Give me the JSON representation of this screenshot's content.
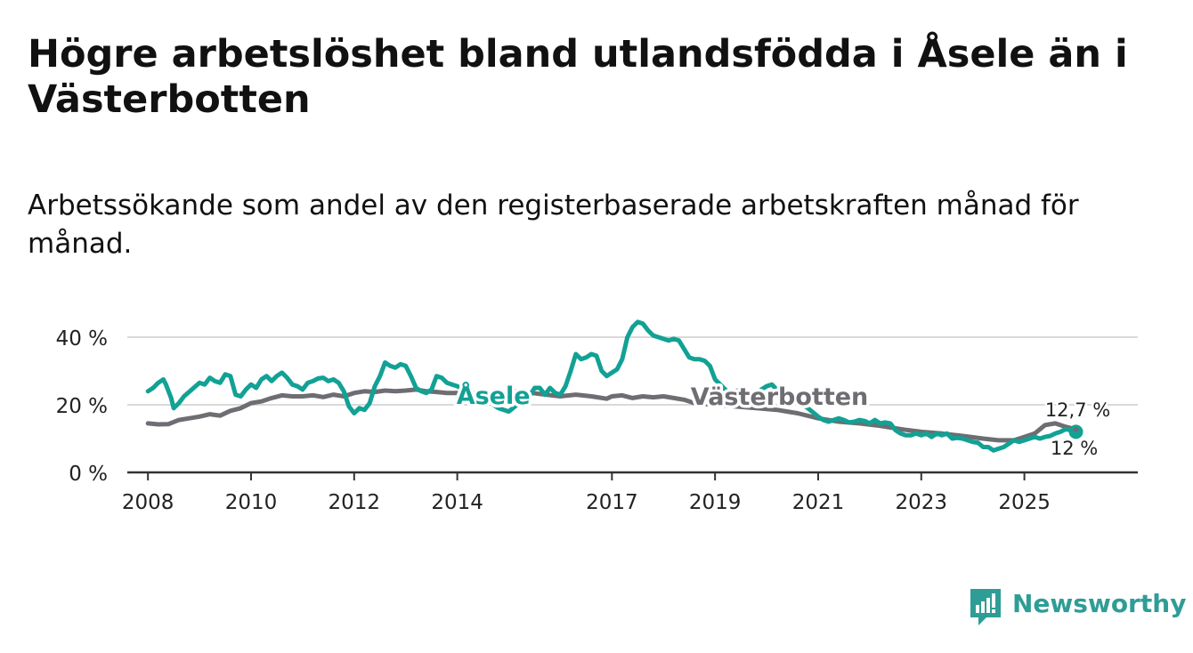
{
  "title": "Högre arbetslöshet bland utlandsfödda i Åsele än i Västerbotten",
  "subtitle": "Arbetssökande som andel av den registerbaserade arbetskraften månad för månad.",
  "brand": {
    "name": "Newsworthy",
    "color": "#2e9d96"
  },
  "colors": {
    "asele": "#12a195",
    "vasterbotten": "#6d6d72",
    "grid": "#d9d9d9",
    "axis": "#333333"
  },
  "chart_data": {
    "type": "line",
    "title": "Högre arbetslöshet bland utlandsfödda i Åsele än i Västerbotten",
    "subtitle": "Arbetssökande som andel av den registerbaserade arbetskraften månad för månad.",
    "xlabel": "",
    "ylabel": "",
    "xlim": [
      2007.6,
      2027.2
    ],
    "ylim": [
      0,
      40
    ],
    "grid": true,
    "x_ticks": [
      {
        "value": 2008,
        "label": "2008"
      },
      {
        "value": 2010,
        "label": "2010"
      },
      {
        "value": 2012,
        "label": "2012"
      },
      {
        "value": 2014,
        "label": "2014"
      },
      {
        "value": 2017,
        "label": "2017"
      },
      {
        "value": 2019,
        "label": "2019"
      },
      {
        "value": 2021,
        "label": "2021"
      },
      {
        "value": 2023,
        "label": "2023"
      },
      {
        "value": 2025,
        "label": "2025"
      }
    ],
    "y_ticks": [
      {
        "value": 0,
        "label": "0 %"
      },
      {
        "value": 20,
        "label": "20 %"
      },
      {
        "value": 40,
        "label": "40 %"
      }
    ],
    "series": [
      {
        "name": "Västerbotten",
        "label": "Västerbotten",
        "end_label": "12,7 %",
        "points": [
          [
            2008.0,
            14.5
          ],
          [
            2008.2,
            14.2
          ],
          [
            2008.4,
            14.3
          ],
          [
            2008.6,
            15.5
          ],
          [
            2008.8,
            16.0
          ],
          [
            2009.0,
            16.5
          ],
          [
            2009.2,
            17.2
          ],
          [
            2009.4,
            16.8
          ],
          [
            2009.6,
            18.2
          ],
          [
            2009.8,
            19.0
          ],
          [
            2010.0,
            20.5
          ],
          [
            2010.2,
            21.0
          ],
          [
            2010.4,
            22.0
          ],
          [
            2010.6,
            22.8
          ],
          [
            2010.8,
            22.5
          ],
          [
            2011.0,
            22.5
          ],
          [
            2011.2,
            22.8
          ],
          [
            2011.4,
            22.3
          ],
          [
            2011.6,
            23.0
          ],
          [
            2011.8,
            22.5
          ],
          [
            2012.0,
            23.5
          ],
          [
            2012.2,
            24.0
          ],
          [
            2012.4,
            23.8
          ],
          [
            2012.6,
            24.2
          ],
          [
            2012.8,
            24.0
          ],
          [
            2013.0,
            24.2
          ],
          [
            2013.2,
            24.5
          ],
          [
            2013.4,
            24.0
          ],
          [
            2013.6,
            23.8
          ],
          [
            2013.8,
            23.5
          ],
          [
            2014.0,
            23.5
          ],
          [
            2014.2,
            23.2
          ],
          [
            2014.5,
            23.5
          ],
          [
            2014.8,
            23.5
          ],
          [
            2015.2,
            24.0
          ],
          [
            2015.6,
            23.2
          ],
          [
            2016.0,
            22.5
          ],
          [
            2016.3,
            23.0
          ],
          [
            2016.6,
            22.5
          ],
          [
            2016.9,
            21.8
          ],
          [
            2017.0,
            22.5
          ],
          [
            2017.2,
            22.8
          ],
          [
            2017.4,
            22.0
          ],
          [
            2017.6,
            22.5
          ],
          [
            2017.8,
            22.2
          ],
          [
            2018.0,
            22.5
          ],
          [
            2018.2,
            22.0
          ],
          [
            2018.4,
            21.5
          ],
          [
            2018.6,
            20.5
          ],
          [
            2019.0,
            20.0
          ],
          [
            2019.4,
            19.5
          ],
          [
            2019.8,
            19.0
          ],
          [
            2020.2,
            18.5
          ],
          [
            2020.6,
            17.5
          ],
          [
            2021.0,
            16.0
          ],
          [
            2021.4,
            15.0
          ],
          [
            2021.8,
            14.5
          ],
          [
            2022.2,
            13.8
          ],
          [
            2022.6,
            12.8
          ],
          [
            2023.0,
            12.0
          ],
          [
            2023.4,
            11.5
          ],
          [
            2023.8,
            10.8
          ],
          [
            2024.2,
            10.0
          ],
          [
            2024.5,
            9.5
          ],
          [
            2024.8,
            9.5
          ],
          [
            2025.0,
            10.5
          ],
          [
            2025.2,
            11.5
          ],
          [
            2025.4,
            14.0
          ],
          [
            2025.6,
            14.5
          ],
          [
            2025.8,
            13.5
          ],
          [
            2026.0,
            12.7
          ]
        ]
      },
      {
        "name": "Åsele",
        "label": "Åsele",
        "end_label": "12 %",
        "points": [
          [
            2008.0,
            24.0
          ],
          [
            2008.1,
            25.0
          ],
          [
            2008.2,
            26.5
          ],
          [
            2008.3,
            27.5
          ],
          [
            2008.35,
            26.0
          ],
          [
            2008.45,
            22.0
          ],
          [
            2008.5,
            19.0
          ],
          [
            2008.6,
            20.5
          ],
          [
            2008.7,
            22.5
          ],
          [
            2008.85,
            24.5
          ],
          [
            2009.0,
            26.5
          ],
          [
            2009.1,
            26.0
          ],
          [
            2009.2,
            28.0
          ],
          [
            2009.3,
            27.0
          ],
          [
            2009.4,
            26.5
          ],
          [
            2009.5,
            29.0
          ],
          [
            2009.6,
            28.5
          ],
          [
            2009.7,
            23.0
          ],
          [
            2009.8,
            22.5
          ],
          [
            2009.9,
            24.5
          ],
          [
            2010.0,
            26.0
          ],
          [
            2010.1,
            25.0
          ],
          [
            2010.2,
            27.5
          ],
          [
            2010.3,
            28.5
          ],
          [
            2010.4,
            27.0
          ],
          [
            2010.5,
            28.5
          ],
          [
            2010.6,
            29.5
          ],
          [
            2010.7,
            28.0
          ],
          [
            2010.8,
            26.0
          ],
          [
            2010.9,
            25.5
          ],
          [
            2011.0,
            24.5
          ],
          [
            2011.1,
            26.5
          ],
          [
            2011.2,
            27.0
          ],
          [
            2011.3,
            27.8
          ],
          [
            2011.4,
            28.0
          ],
          [
            2011.5,
            27.0
          ],
          [
            2011.6,
            27.5
          ],
          [
            2011.7,
            26.5
          ],
          [
            2011.8,
            24.0
          ],
          [
            2011.9,
            19.5
          ],
          [
            2012.0,
            17.5
          ],
          [
            2012.1,
            19.0
          ],
          [
            2012.2,
            18.5
          ],
          [
            2012.3,
            20.5
          ],
          [
            2012.4,
            25.5
          ],
          [
            2012.5,
            28.5
          ],
          [
            2012.6,
            32.5
          ],
          [
            2012.7,
            31.5
          ],
          [
            2012.8,
            31.0
          ],
          [
            2012.9,
            32.0
          ],
          [
            2013.0,
            31.5
          ],
          [
            2013.1,
            28.5
          ],
          [
            2013.2,
            25.0
          ],
          [
            2013.3,
            24.0
          ],
          [
            2013.4,
            23.5
          ],
          [
            2013.5,
            24.5
          ],
          [
            2013.6,
            28.5
          ],
          [
            2013.7,
            28.0
          ],
          [
            2013.8,
            26.5
          ],
          [
            2013.9,
            26.0
          ],
          [
            2014.0,
            25.5
          ],
          [
            2014.2,
            24.0
          ],
          [
            2014.4,
            23.0
          ],
          [
            2014.6,
            21.0
          ],
          [
            2014.8,
            19.0
          ],
          [
            2015.0,
            18.0
          ],
          [
            2015.2,
            20.5
          ],
          [
            2015.4,
            22.5
          ],
          [
            2015.5,
            25.0
          ],
          [
            2015.6,
            25.0
          ],
          [
            2015.7,
            23.0
          ],
          [
            2015.8,
            25.0
          ],
          [
            2015.9,
            23.5
          ],
          [
            2016.0,
            23.0
          ],
          [
            2016.1,
            25.5
          ],
          [
            2016.2,
            30.0
          ],
          [
            2016.3,
            35.0
          ],
          [
            2016.4,
            33.5
          ],
          [
            2016.5,
            34.0
          ],
          [
            2016.6,
            35.0
          ],
          [
            2016.7,
            34.5
          ],
          [
            2016.8,
            30.0
          ],
          [
            2016.9,
            28.5
          ],
          [
            2017.0,
            29.5
          ],
          [
            2017.1,
            30.5
          ],
          [
            2017.2,
            33.5
          ],
          [
            2017.3,
            40.0
          ],
          [
            2017.4,
            43.0
          ],
          [
            2017.5,
            44.5
          ],
          [
            2017.6,
            44.0
          ],
          [
            2017.7,
            42.0
          ],
          [
            2017.8,
            40.5
          ],
          [
            2017.9,
            40.0
          ],
          [
            2018.0,
            39.5
          ],
          [
            2018.1,
            39.0
          ],
          [
            2018.2,
            39.5
          ],
          [
            2018.3,
            39.0
          ],
          [
            2018.4,
            36.5
          ],
          [
            2018.5,
            34.0
          ],
          [
            2018.6,
            33.5
          ],
          [
            2018.7,
            33.5
          ],
          [
            2018.8,
            33.0
          ],
          [
            2018.9,
            31.5
          ],
          [
            2019.0,
            27.5
          ],
          [
            2019.1,
            26.0
          ],
          [
            2019.2,
            24.5
          ],
          [
            2019.3,
            23.0
          ],
          [
            2019.4,
            24.0
          ],
          [
            2019.5,
            24.5
          ],
          [
            2019.6,
            23.5
          ],
          [
            2019.7,
            22.5
          ],
          [
            2019.8,
            23.5
          ],
          [
            2019.9,
            24.5
          ],
          [
            2020.0,
            25.5
          ],
          [
            2020.1,
            26.0
          ],
          [
            2020.2,
            24.5
          ],
          [
            2020.4,
            23.0
          ],
          [
            2020.6,
            21.0
          ],
          [
            2020.8,
            19.0
          ],
          [
            2021.0,
            16.5
          ],
          [
            2021.1,
            15.5
          ],
          [
            2021.2,
            15.0
          ],
          [
            2021.3,
            15.5
          ],
          [
            2021.4,
            16.0
          ],
          [
            2021.5,
            15.5
          ],
          [
            2021.6,
            14.8
          ],
          [
            2021.7,
            15.0
          ],
          [
            2021.8,
            15.5
          ],
          [
            2021.9,
            15.2
          ],
          [
            2022.0,
            14.5
          ],
          [
            2022.1,
            15.5
          ],
          [
            2022.2,
            14.5
          ],
          [
            2022.3,
            14.8
          ],
          [
            2022.4,
            14.5
          ],
          [
            2022.5,
            12.5
          ],
          [
            2022.6,
            11.5
          ],
          [
            2022.7,
            11.0
          ],
          [
            2022.8,
            11.0
          ],
          [
            2022.9,
            11.5
          ],
          [
            2023.0,
            11.0
          ],
          [
            2023.1,
            11.5
          ],
          [
            2023.2,
            10.5
          ],
          [
            2023.3,
            11.5
          ],
          [
            2023.4,
            11.0
          ],
          [
            2023.5,
            11.5
          ],
          [
            2023.6,
            10.0
          ],
          [
            2023.7,
            10.2
          ],
          [
            2023.8,
            10.0
          ],
          [
            2023.9,
            9.5
          ],
          [
            2024.0,
            9.0
          ],
          [
            2024.1,
            8.8
          ],
          [
            2024.2,
            7.5
          ],
          [
            2024.3,
            7.5
          ],
          [
            2024.4,
            6.5
          ],
          [
            2024.5,
            7.0
          ],
          [
            2024.6,
            7.5
          ],
          [
            2024.7,
            8.5
          ],
          [
            2024.8,
            9.5
          ],
          [
            2024.9,
            9.0
          ],
          [
            2025.0,
            9.5
          ],
          [
            2025.1,
            10.0
          ],
          [
            2025.2,
            10.5
          ],
          [
            2025.3,
            10.0
          ],
          [
            2025.4,
            10.5
          ],
          [
            2025.5,
            10.8
          ],
          [
            2025.6,
            11.5
          ],
          [
            2025.7,
            12.0
          ],
          [
            2025.8,
            12.8
          ],
          [
            2025.9,
            12.5
          ],
          [
            2026.0,
            12.0
          ]
        ]
      }
    ]
  }
}
